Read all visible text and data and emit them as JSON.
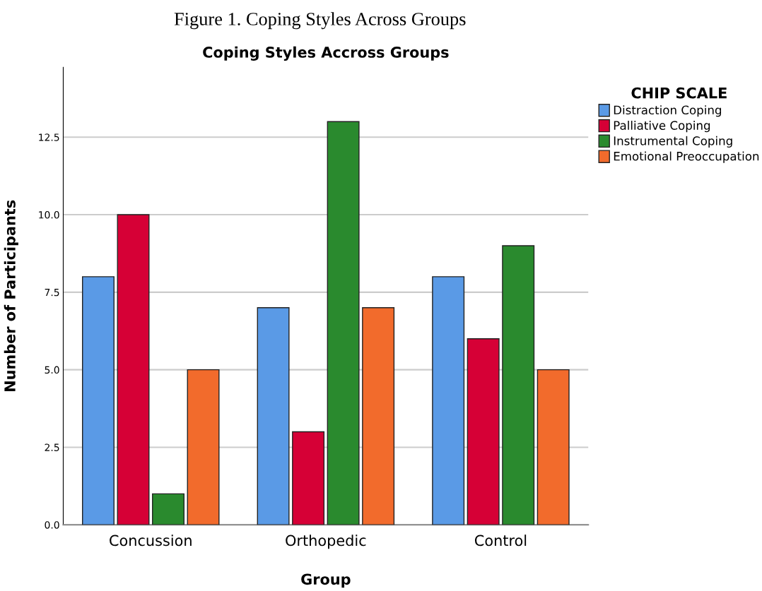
{
  "chart_data": {
    "type": "bar",
    "title": "Figure 1. Coping Styles Across Groups",
    "subtitle": "Coping Styles Accross Groups",
    "xlabel": "Group",
    "ylabel": "Number of Participants",
    "legend_title": "CHIP SCALE",
    "categories": [
      "Concussion",
      "Orthopedic",
      "Control"
    ],
    "series": [
      {
        "name": "Distraction Coping",
        "color": "#5a9ae6",
        "values": [
          8,
          7,
          8
        ]
      },
      {
        "name": "Palliative Coping",
        "color": "#d60036",
        "values": [
          10,
          3,
          6
        ]
      },
      {
        "name": "Instrumental Coping",
        "color": "#2a8a2e",
        "values": [
          1,
          13,
          9
        ]
      },
      {
        "name": "Emotional Preoccupation",
        "color": "#f26b2c",
        "values": [
          5,
          7,
          5
        ]
      }
    ],
    "ylim": [
      0,
      14.75
    ],
    "yticks": [
      {
        "value": 0,
        "label": "0.0"
      },
      2.5,
      {
        "value": 5,
        "label": "5.0"
      },
      7.5,
      {
        "value": 10,
        "label": "10.0"
      },
      12.5
    ],
    "grid": "y",
    "legend": "right"
  }
}
